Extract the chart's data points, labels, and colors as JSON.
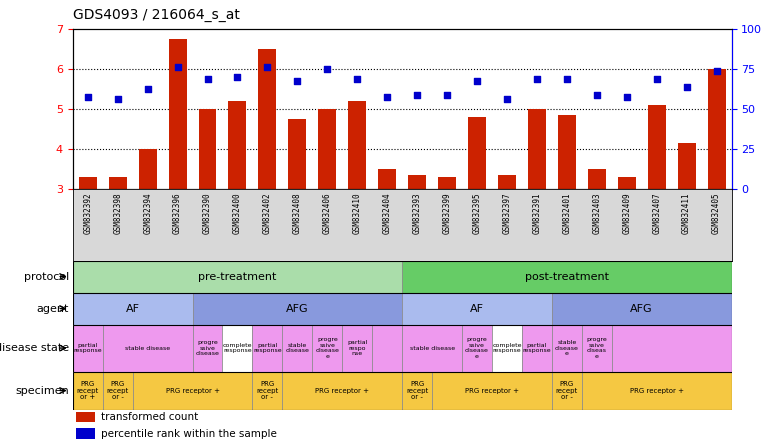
{
  "title": "GDS4093 / 216064_s_at",
  "samples": [
    "GSM832392",
    "GSM832398",
    "GSM832394",
    "GSM832396",
    "GSM832390",
    "GSM832400",
    "GSM832402",
    "GSM832408",
    "GSM832406",
    "GSM832410",
    "GSM832404",
    "GSM832393",
    "GSM832399",
    "GSM832395",
    "GSM832397",
    "GSM832391",
    "GSM832401",
    "GSM832403",
    "GSM832409",
    "GSM832407",
    "GSM832411",
    "GSM832405"
  ],
  "bar_values": [
    3.3,
    3.3,
    4.0,
    6.75,
    5.0,
    5.2,
    6.5,
    4.75,
    5.0,
    5.2,
    3.5,
    3.35,
    3.3,
    4.8,
    3.35,
    5.0,
    4.85,
    3.5,
    3.3,
    5.1,
    4.15,
    6.0
  ],
  "dot_values": [
    5.3,
    5.25,
    5.5,
    6.05,
    5.75,
    5.8,
    6.05,
    5.7,
    6.0,
    5.75,
    5.3,
    5.35,
    5.35,
    5.7,
    5.25,
    5.75,
    5.75,
    5.35,
    5.3,
    5.75,
    5.55,
    5.95
  ],
  "ylim": [
    3.0,
    7.0
  ],
  "yticks_left": [
    3,
    4,
    5,
    6,
    7
  ],
  "yticks_right": [
    0,
    25,
    50,
    75,
    100
  ],
  "bar_color": "#cc2200",
  "dot_color": "#0000cc",
  "pre_treatment_color": "#aaddaa",
  "post_treatment_color": "#66cc66",
  "af_color": "#aabbee",
  "afg_color": "#8899dd",
  "disease_pink": "#ee99ee",
  "disease_white": "#ffffff",
  "specimen_color": "#f5c842",
  "xtick_bg": "#d8d8d8",
  "protocol_regions": [
    [
      0,
      11,
      "#aaddaa",
      "pre-treatment"
    ],
    [
      11,
      22,
      "#66cc66",
      "post-treatment"
    ]
  ],
  "agent_regions": [
    [
      0,
      4,
      "#aabbee",
      "AF"
    ],
    [
      4,
      11,
      "#8899dd",
      "AFG"
    ],
    [
      11,
      16,
      "#aabbee",
      "AF"
    ],
    [
      16,
      22,
      "#8899dd",
      "AFG"
    ]
  ],
  "disease_regions": [
    [
      0,
      1,
      "#ee99ee",
      "partial\nresponse"
    ],
    [
      1,
      4,
      "#ee99ee",
      "stable disease"
    ],
    [
      4,
      5,
      "#ee99ee",
      "progre\nssive\ndisease"
    ],
    [
      5,
      6,
      "#ffffff",
      "complete\nresponse"
    ],
    [
      6,
      7,
      "#ee99ee",
      "partial\nresponse"
    ],
    [
      7,
      8,
      "#ee99ee",
      "stable\ndisease"
    ],
    [
      8,
      9,
      "#ee99ee",
      "progre\nssive\ndisease\ne"
    ],
    [
      9,
      10,
      "#ee99ee",
      "partial\nrespo\nnse"
    ],
    [
      10,
      11,
      "#ee99ee",
      ""
    ],
    [
      11,
      13,
      "#ee99ee",
      "stable disease"
    ],
    [
      13,
      14,
      "#ee99ee",
      "progre\nssive\ndisease\ne"
    ],
    [
      14,
      15,
      "#ffffff",
      "complete\nresponse"
    ],
    [
      15,
      16,
      "#ee99ee",
      "partial\nresponse"
    ],
    [
      16,
      17,
      "#ee99ee",
      "stable\ndisease\ne"
    ],
    [
      17,
      18,
      "#ee99ee",
      "progre\nssive\ndiseas\ne"
    ],
    [
      18,
      22,
      "#ee99ee",
      ""
    ]
  ],
  "specimen_regions": [
    [
      0,
      1,
      "#f5c842",
      "PRG\nrecept\nor +"
    ],
    [
      1,
      2,
      "#f5c842",
      "PRG\nrecept\nor -"
    ],
    [
      2,
      6,
      "#f5c842",
      "PRG receptor +"
    ],
    [
      6,
      7,
      "#f5c842",
      "PRG\nrecept\nor -"
    ],
    [
      7,
      11,
      "#f5c842",
      "PRG receptor +"
    ],
    [
      11,
      12,
      "#f5c842",
      "PRG\nrecept\nor -"
    ],
    [
      12,
      16,
      "#f5c842",
      "PRG receptor +"
    ],
    [
      16,
      17,
      "#f5c842",
      "PRG\nrecept\nor -"
    ],
    [
      17,
      22,
      "#f5c842",
      "PRG receptor +"
    ]
  ],
  "row_labels": [
    "protocol",
    "agent",
    "disease state",
    "specimen"
  ],
  "legend_items": [
    [
      "#cc2200",
      "transformed count"
    ],
    [
      "#0000cc",
      "percentile rank within the sample"
    ]
  ]
}
